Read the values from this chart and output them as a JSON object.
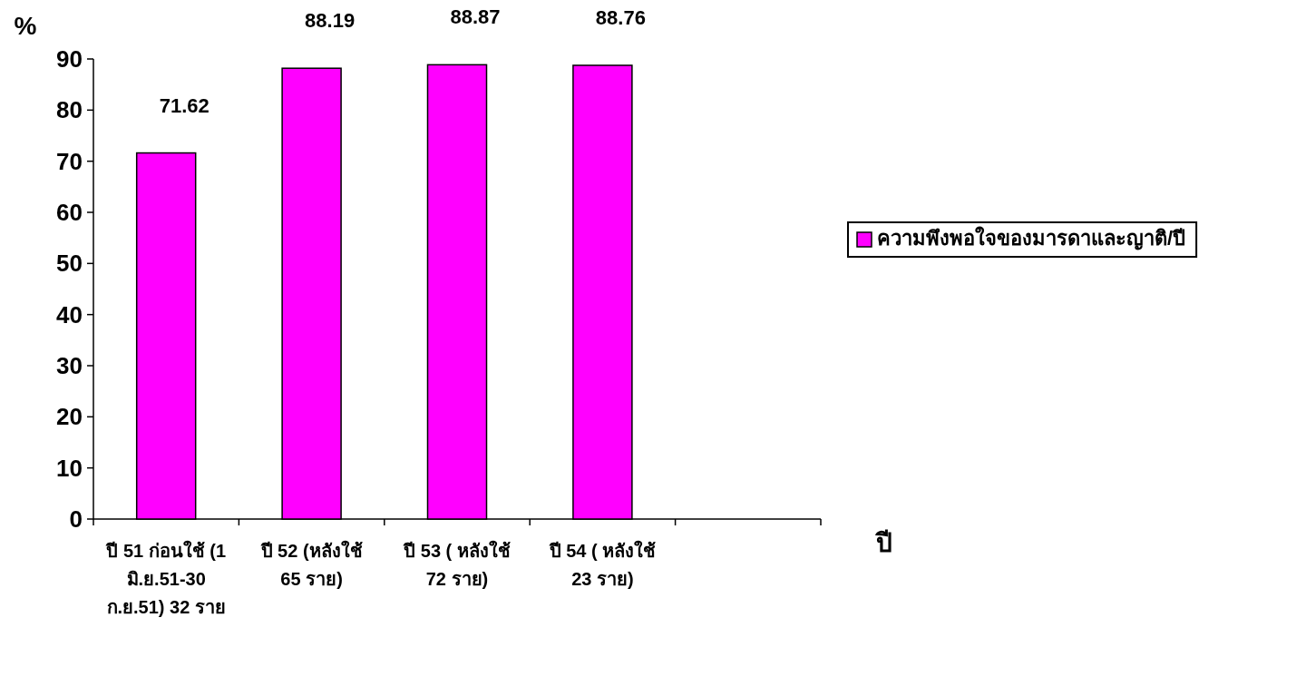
{
  "chart_data": {
    "type": "bar",
    "ylabel": "%",
    "xlabel": "ปี",
    "categories": [
      "ปี 51 ก่อนใช้ (1 มิ.ย.51-30 ก.ย.51) 32 ราย",
      "ปี 52 (หลังใช้ 65 ราย)",
      "ปี 53 ( หลังใช้ 72 ราย)",
      "ปี 54 ( หลังใช้ 23 ราย)",
      null
    ],
    "series": [
      {
        "name": "ความพึงพอใจของมารดาและญาติ/ปี",
        "color": "#ff00ff",
        "values": [
          71.62,
          88.19,
          88.87,
          88.76,
          null
        ]
      }
    ],
    "ylim": [
      0,
      90
    ],
    "yticks": [
      0,
      10,
      20,
      30,
      40,
      50,
      60,
      70,
      80,
      90
    ],
    "data_labels": true,
    "legend": "right",
    "grid": false
  }
}
